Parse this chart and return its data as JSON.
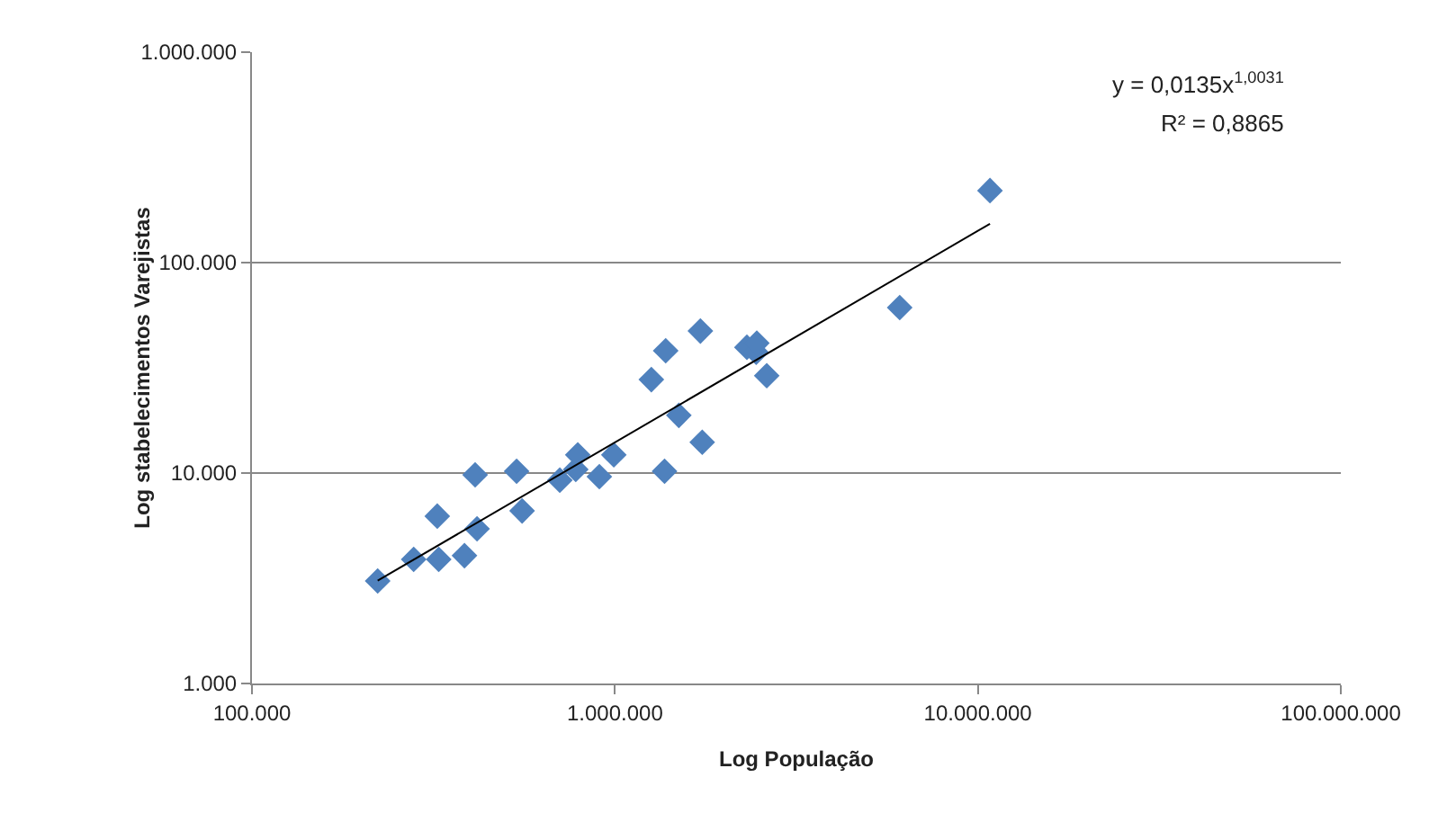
{
  "chart_data": {
    "type": "scatter",
    "xlabel": "Log População",
    "ylabel": "Log stabelecimentos Varejistas",
    "log": "xy",
    "grid": "y",
    "xlim": [
      100000,
      100000000
    ],
    "xticks": [
      {
        "value": 100000,
        "label": "100.000"
      },
      {
        "value": 1000000,
        "label": "1.000.000"
      },
      {
        "value": 10000000,
        "label": "10.000.000"
      },
      {
        "value": 100000000,
        "label": "100.000.000"
      }
    ],
    "ylim": [
      1000,
      1000000
    ],
    "yticks": [
      {
        "value": 1000,
        "label": "1.000"
      },
      {
        "value": 10000,
        "label": "10.000"
      },
      {
        "value": 100000,
        "label": "100.000"
      },
      {
        "value": 1000000,
        "label": "1.000.000"
      }
    ],
    "series": [
      {
        "marker": "diamond",
        "color": "#4f81bd",
        "x": [
          222000,
          279000,
          324000,
          327000,
          385000,
          417000,
          412000,
          536000,
          555000,
          705000,
          780000,
          790000,
          906000,
          993000,
          1370000,
          1260000,
          1380000,
          1500000,
          1720000,
          1740000,
          2310000,
          2450000,
          2460000,
          2620000,
          6090000,
          10800000
        ],
        "values": [
          3070,
          3890,
          6240,
          3890,
          4050,
          5430,
          9800,
          10200,
          6610,
          9250,
          10400,
          12200,
          9620,
          12200,
          10200,
          27800,
          38100,
          18800,
          47300,
          14000,
          39600,
          37500,
          41400,
          29000,
          61100,
          220000
        ]
      },
      {
        "type": "line",
        "marker": "none",
        "color": "#000000",
        "x": [
          222000,
          10800000
        ],
        "values": [
          3080,
          153000
        ]
      }
    ],
    "annotations": [
      "y = 0,0135x$^{1,0031}$",
      "R² = 0,8865"
    ]
  }
}
